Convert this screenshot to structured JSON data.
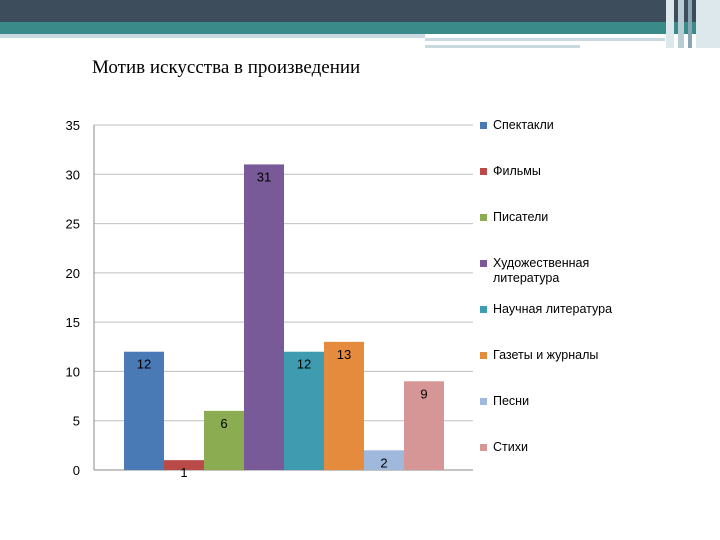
{
  "slide": {
    "title": "Мотив искусства в произведении"
  },
  "chart_data": {
    "type": "bar",
    "title": "",
    "xlabel": "",
    "ylabel": "",
    "ylim": [
      0,
      35
    ],
    "yticks": [
      0,
      5,
      10,
      15,
      20,
      25,
      30,
      35
    ],
    "grid": true,
    "legend_position": "right",
    "series": [
      {
        "name": "Спектакли",
        "value": 12,
        "color": "#4a7ab5"
      },
      {
        "name": "Фильмы",
        "value": 1,
        "color": "#b94a48"
      },
      {
        "name": "Писатели",
        "value": 6,
        "color": "#8cac52"
      },
      {
        "name": "Художественная литература",
        "value": 31,
        "color": "#775a97"
      },
      {
        "name": "Научная литература",
        "value": 12,
        "color": "#3f9bb0"
      },
      {
        "name": "Газеты и журналы",
        "value": 13,
        "color": "#e58b3e"
      },
      {
        "name": "Песни",
        "value": 2,
        "color": "#9fb8dc"
      },
      {
        "name": "Стихи",
        "value": 9,
        "color": "#d69695"
      }
    ]
  }
}
